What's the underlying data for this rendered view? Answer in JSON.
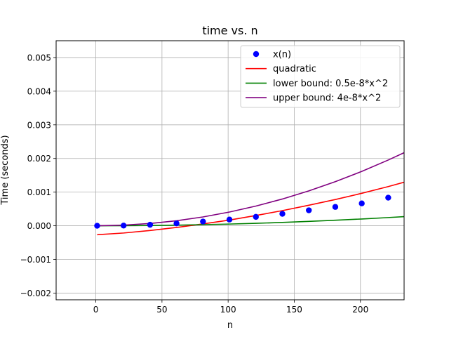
{
  "chart_data": {
    "type": "line",
    "title": "time vs. n",
    "xlabel": "n",
    "ylabel": "Time (seconds)",
    "xlim": [
      -30,
      233
    ],
    "ylim": [
      -0.0022,
      0.0055
    ],
    "grid": true,
    "legend_position": "top-right",
    "xticks": [
      0,
      50,
      100,
      150,
      200
    ],
    "xtick_labels": [
      "0",
      "50",
      "100",
      "150",
      "200"
    ],
    "yticks": [
      -0.002,
      -0.001,
      0.0,
      0.001,
      0.002,
      0.003,
      0.004,
      0.005
    ],
    "ytick_labels": [
      "−0.002",
      "−0.001",
      "0.000",
      "0.001",
      "0.002",
      "0.003",
      "0.004",
      "0.005"
    ],
    "series": [
      {
        "name": "x(n)",
        "kind": "scatter",
        "color": "#0000ff",
        "x": [
          1,
          21,
          41,
          61,
          81,
          101,
          121,
          141,
          161,
          181,
          201,
          221
        ],
        "y": [
          0.0,
          6e-06,
          3e-05,
          7e-05,
          0.000125,
          0.000185,
          0.000265,
          0.000355,
          0.00046,
          0.00056,
          0.000665,
          0.000835
        ]
      },
      {
        "name": "quadratic",
        "kind": "line",
        "color": "#ff0000",
        "x": [
          1,
          21,
          41,
          61,
          81,
          101,
          121,
          141,
          161,
          181,
          201,
          221,
          233
        ],
        "y": [
          -0.000265,
          -0.000215,
          -0.00014,
          -5e-05,
          5.5e-05,
          0.00017,
          0.000305,
          0.00045,
          0.00061,
          0.00078,
          0.000965,
          0.001165,
          0.001295
        ]
      },
      {
        "name": "lower bound: 0.5e-8*x^2",
        "kind": "line",
        "color": "#008000",
        "x": [
          1,
          21,
          41,
          61,
          81,
          101,
          121,
          141,
          161,
          181,
          201,
          221,
          233
        ],
        "y": [
          0.0,
          2.2e-06,
          8.4e-06,
          1.86e-05,
          3.28e-05,
          5.1e-05,
          7.32e-05,
          9.94e-05,
          0.0001296,
          0.0001638,
          0.000202,
          0.0002442,
          0.0002714
        ]
      },
      {
        "name": "upper bound: 4e-8*x^2",
        "kind": "line",
        "color": "#800080",
        "x": [
          1,
          21,
          41,
          61,
          81,
          101,
          121,
          141,
          161,
          181,
          201,
          221,
          233
        ],
        "y": [
          0.0,
          1.76e-05,
          6.72e-05,
          0.0001488,
          0.0002624,
          0.000408,
          0.0005856,
          0.0007952,
          0.0010368,
          0.0013104,
          0.001616,
          0.0019536,
          0.0021716
        ]
      }
    ]
  }
}
